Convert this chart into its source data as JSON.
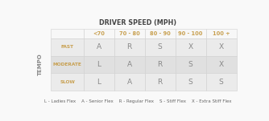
{
  "title": "DRIVER SPEED (MPH)",
  "col_headers": [
    "<70",
    "70 - 80",
    "80 - 90",
    "90 - 100",
    "100 +"
  ],
  "row_headers": [
    "FAST",
    "MODERATE",
    "SLOW"
  ],
  "table_data": [
    [
      "A",
      "R",
      "S",
      "X",
      "X"
    ],
    [
      "L",
      "A",
      "R",
      "S",
      "X"
    ],
    [
      "L",
      "A",
      "R",
      "S",
      "S"
    ]
  ],
  "legend_items": [
    "L - Ladies Flex",
    "A - Senior Flex",
    "R - Regular Flex",
    "S - Stiff Flex",
    "X - Extra Stiff Flex"
  ],
  "cell_bg_light": "#ebebeb",
  "cell_bg_dark": "#e0e0e0",
  "header_row_bg": "#f7f7f7",
  "header_col_bg": "#f7f7f7",
  "accent_color": "#c8a050",
  "data_color": "#888888",
  "title_color": "#444444",
  "legend_color": "#666666",
  "border_color": "#d0d0d0",
  "white_bg": "#f9f9f9",
  "tempo_color": "#888888"
}
